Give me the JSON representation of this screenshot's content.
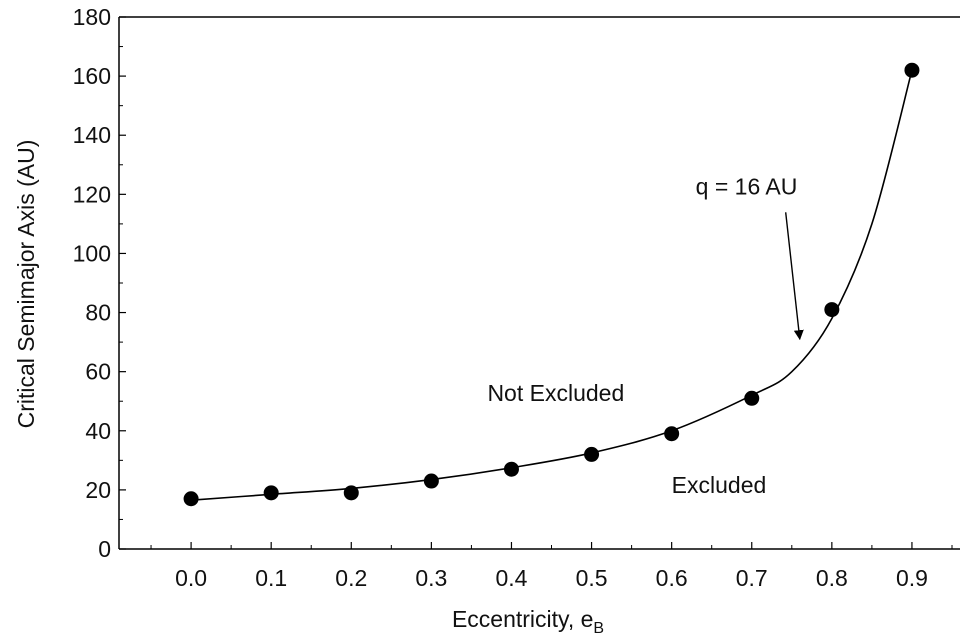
{
  "chart_data": {
    "type": "scatter",
    "title": "",
    "xlabel": "Eccentricity, e",
    "xlabel_subscript": "B",
    "ylabel": "Critical Semimajor Axis (AU)",
    "xlim": [
      -0.09,
      0.96
    ],
    "ylim": [
      0,
      180
    ],
    "x_ticks": [
      0.0,
      0.1,
      0.2,
      0.3,
      0.4,
      0.5,
      0.6,
      0.7,
      0.8,
      0.9
    ],
    "x_tick_labels": [
      "0.0",
      "0.1",
      "0.2",
      "0.3",
      "0.4",
      "0.5",
      "0.6",
      "0.7",
      "0.8",
      "0.9"
    ],
    "y_ticks": [
      0,
      20,
      40,
      60,
      80,
      100,
      120,
      140,
      160,
      180
    ],
    "y_tick_labels": [
      "0",
      "20",
      "40",
      "60",
      "80",
      "100",
      "120",
      "140",
      "160",
      "180"
    ],
    "grid": false,
    "series": [
      {
        "marker": "filled-circle",
        "color": "#000000",
        "x": [
          0.0,
          0.1,
          0.2,
          0.3,
          0.4,
          0.5,
          0.6,
          0.7,
          0.8,
          0.9
        ],
        "y": [
          17,
          19,
          19,
          23,
          27,
          32,
          39,
          51,
          81,
          162
        ]
      },
      {
        "style": "curve",
        "color": "#000000",
        "x": [
          0.0,
          0.1,
          0.2,
          0.3,
          0.4,
          0.5,
          0.6,
          0.7,
          0.75,
          0.8,
          0.85,
          0.9
        ],
        "y": [
          16.5,
          18.5,
          20.5,
          23.5,
          27.5,
          32.5,
          40,
          52,
          60,
          78,
          110,
          162
        ]
      }
    ],
    "annotations": [
      {
        "text": "q = 16 AU",
        "x": 0.63,
        "y": 120,
        "arrow_to": [
          0.76,
          71
        ]
      },
      {
        "text": "Not Excluded",
        "x": 0.37,
        "y": 50
      },
      {
        "text": "Excluded",
        "x": 0.6,
        "y": 19
      }
    ]
  }
}
